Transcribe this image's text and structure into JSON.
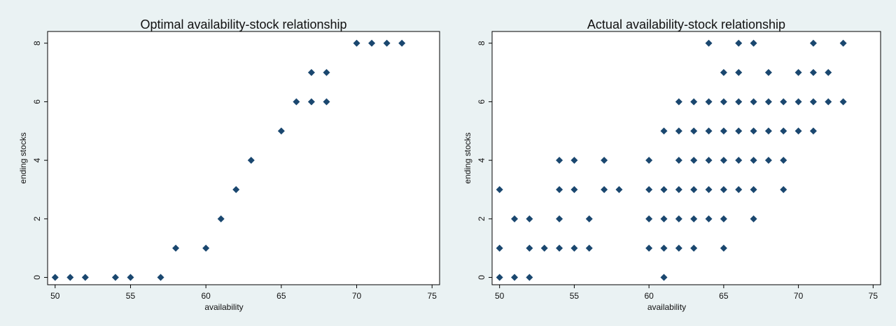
{
  "chart_data": [
    {
      "type": "scatter",
      "title": "Optimal availability-stock relationship",
      "x_label": "availability",
      "y_label": "ending stocks",
      "color": "#1a476f",
      "marker": "diamond",
      "x": [
        50,
        51,
        52,
        54,
        55,
        57,
        58,
        60,
        61,
        62,
        63,
        65,
        66,
        67,
        67,
        68,
        68,
        70,
        71,
        72,
        73
      ],
      "values": [
        0,
        0,
        0,
        0,
        0,
        0,
        1,
        1,
        2,
        3,
        4,
        5,
        6,
        6,
        7,
        6,
        7,
        8,
        8,
        8,
        8
      ],
      "xlim": [
        49.5,
        75.5
      ],
      "ylim": [
        -0.25,
        8.4
      ],
      "xticks": [
        50,
        55,
        60,
        65,
        70,
        75
      ],
      "yticks": [
        0,
        2,
        4,
        6,
        8
      ],
      "grid": false
    },
    {
      "type": "scatter",
      "title": "Actual availability-stock relationship",
      "x_label": "availability",
      "y_label": "ending stocks",
      "color": "#1a476f",
      "marker": "diamond",
      "x": [
        50,
        50,
        50,
        51,
        51,
        52,
        52,
        52,
        53,
        54,
        54,
        54,
        54,
        55,
        55,
        55,
        56,
        56,
        57,
        57,
        58,
        60,
        60,
        60,
        60,
        61,
        61,
        61,
        61,
        61,
        62,
        62,
        62,
        62,
        62,
        62,
        63,
        63,
        63,
        63,
        63,
        63,
        64,
        64,
        64,
        64,
        64,
        64,
        65,
        65,
        65,
        65,
        65,
        65,
        65,
        66,
        66,
        66,
        66,
        66,
        66,
        67,
        67,
        67,
        67,
        67,
        67,
        68,
        68,
        68,
        68,
        69,
        69,
        69,
        69,
        70,
        70,
        70,
        71,
        71,
        71,
        71,
        72,
        72,
        73,
        73
      ],
      "values": [
        0,
        1,
        3,
        0,
        2,
        0,
        1,
        2,
        1,
        1,
        2,
        3,
        4,
        1,
        3,
        4,
        1,
        2,
        3,
        4,
        3,
        1,
        2,
        3,
        4,
        0,
        1,
        2,
        3,
        5,
        1,
        2,
        3,
        4,
        5,
        6,
        1,
        2,
        3,
        4,
        5,
        6,
        2,
        3,
        4,
        5,
        6,
        8,
        1,
        2,
        3,
        4,
        5,
        6,
        7,
        3,
        4,
        5,
        6,
        7,
        8,
        2,
        3,
        4,
        5,
        6,
        8,
        4,
        5,
        6,
        7,
        3,
        4,
        5,
        6,
        5,
        6,
        7,
        5,
        6,
        7,
        8,
        6,
        7,
        6,
        8
      ],
      "xlim": [
        49.5,
        75.5
      ],
      "ylim": [
        -0.25,
        8.4
      ],
      "xticks": [
        50,
        55,
        60,
        65,
        70,
        75
      ],
      "yticks": [
        0,
        2,
        4,
        6,
        8
      ],
      "grid": false
    }
  ]
}
